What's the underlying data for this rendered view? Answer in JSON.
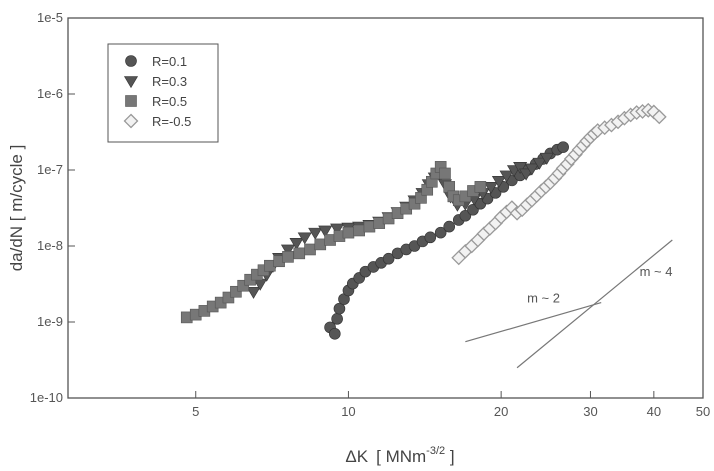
{
  "chart_data": {
    "type": "scatter",
    "xlabel": "ΔK",
    "xlabel_unit_prefix": "MNm",
    "xlabel_unit_exp": "-3/2",
    "ylabel": "da/dN  [ m/cycle ]",
    "x_scale": "log",
    "y_scale": "log",
    "xlim": [
      2.8,
      50
    ],
    "ylim": [
      1e-10,
      1e-05
    ],
    "x_ticks": [
      5,
      10,
      20,
      30,
      40,
      50
    ],
    "x_tick_labels": [
      "5",
      "10",
      "20",
      "30",
      "40",
      "50"
    ],
    "y_ticks": [
      1e-10,
      1e-09,
      1e-08,
      1e-07,
      1e-06,
      1e-05
    ],
    "y_tick_labels": [
      "1e-10",
      "1e-9",
      "1e-8",
      "1e-7",
      "1e-6",
      "1e-5"
    ],
    "grid": false,
    "legend_position": "top-left",
    "series": [
      {
        "name": "R=0.1",
        "marker": "circle",
        "color": "#555555",
        "points": [
          [
            9.2,
            8.5e-10
          ],
          [
            9.4,
            7e-10
          ],
          [
            9.5,
            1.1e-09
          ],
          [
            9.6,
            1.5e-09
          ],
          [
            9.8,
            2e-09
          ],
          [
            10.0,
            2.6e-09
          ],
          [
            10.2,
            3.2e-09
          ],
          [
            10.5,
            3.8e-09
          ],
          [
            10.8,
            4.6e-09
          ],
          [
            11.2,
            5.3e-09
          ],
          [
            11.6,
            6e-09
          ],
          [
            12.0,
            6.8e-09
          ],
          [
            12.5,
            8e-09
          ],
          [
            13.0,
            9e-09
          ],
          [
            13.5,
            1e-08
          ],
          [
            14.0,
            1.15e-08
          ],
          [
            14.5,
            1.3e-08
          ],
          [
            15.2,
            1.5e-08
          ],
          [
            15.8,
            1.8e-08
          ],
          [
            16.5,
            2.2e-08
          ],
          [
            17.0,
            2.5e-08
          ],
          [
            17.6,
            3e-08
          ],
          [
            18.2,
            3.6e-08
          ],
          [
            18.8,
            4.2e-08
          ],
          [
            19.5,
            5e-08
          ],
          [
            20.2,
            6e-08
          ],
          [
            21.0,
            7.3e-08
          ],
          [
            21.8,
            8.5e-08
          ],
          [
            22.6,
            1e-07
          ],
          [
            23.4,
            1.2e-07
          ],
          [
            24.2,
            1.4e-07
          ],
          [
            25.0,
            1.65e-07
          ],
          [
            25.8,
            1.85e-07
          ],
          [
            26.5,
            2e-07
          ]
        ]
      },
      {
        "name": "R=0.3",
        "marker": "triangle-down",
        "color": "#555555",
        "points": [
          [
            6.5,
            2.5e-09
          ],
          [
            6.7,
            3.2e-09
          ],
          [
            6.9,
            4.2e-09
          ],
          [
            7.1,
            5.5e-09
          ],
          [
            7.3,
            7e-09
          ],
          [
            7.6,
            9e-09
          ],
          [
            7.9,
            1.1e-08
          ],
          [
            8.2,
            1.3e-08
          ],
          [
            8.6,
            1.5e-08
          ],
          [
            9.0,
            1.6e-08
          ],
          [
            9.5,
            1.7e-08
          ],
          [
            10.0,
            1.75e-08
          ],
          [
            10.5,
            1.8e-08
          ],
          [
            11.0,
            1.9e-08
          ],
          [
            11.5,
            2.1e-08
          ],
          [
            12.0,
            2.4e-08
          ],
          [
            12.5,
            2.8e-08
          ],
          [
            13.0,
            3.3e-08
          ],
          [
            13.5,
            4e-08
          ],
          [
            14.0,
            5e-08
          ],
          [
            14.4,
            6.5e-08
          ],
          [
            14.8,
            8e-08
          ],
          [
            15.1,
            9e-08
          ],
          [
            15.5,
            6.5e-08
          ],
          [
            15.9,
            4.5e-08
          ],
          [
            16.4,
            3.5e-08
          ],
          [
            17.0,
            3.6e-08
          ],
          [
            17.7,
            4.2e-08
          ],
          [
            18.4,
            5e-08
          ],
          [
            19.1,
            6e-08
          ],
          [
            19.8,
            7.2e-08
          ],
          [
            20.5,
            8.5e-08
          ],
          [
            21.2,
            1e-07
          ],
          [
            21.8,
            1.1e-07
          ],
          [
            22.4,
            9e-08
          ],
          [
            23.0,
            1.05e-07
          ],
          [
            23.8,
            1.25e-07
          ],
          [
            24.6,
            1.45e-07
          ]
        ]
      },
      {
        "name": "R=0.5",
        "marker": "square",
        "color": "#777777",
        "points": [
          [
            4.8,
            1.15e-09
          ],
          [
            5.0,
            1.25e-09
          ],
          [
            5.2,
            1.4e-09
          ],
          [
            5.4,
            1.6e-09
          ],
          [
            5.6,
            1.8e-09
          ],
          [
            5.8,
            2.1e-09
          ],
          [
            6.0,
            2.5e-09
          ],
          [
            6.2,
            3e-09
          ],
          [
            6.4,
            3.6e-09
          ],
          [
            6.6,
            4.2e-09
          ],
          [
            6.8,
            4.8e-09
          ],
          [
            7.0,
            5.5e-09
          ],
          [
            7.3,
            6.3e-09
          ],
          [
            7.6,
            7.2e-09
          ],
          [
            8.0,
            8e-09
          ],
          [
            8.4,
            9e-09
          ],
          [
            8.8,
            1.05e-08
          ],
          [
            9.2,
            1.2e-08
          ],
          [
            9.6,
            1.35e-08
          ],
          [
            10.0,
            1.5e-08
          ],
          [
            10.5,
            1.6e-08
          ],
          [
            11.0,
            1.8e-08
          ],
          [
            11.5,
            2e-08
          ],
          [
            12.0,
            2.3e-08
          ],
          [
            12.5,
            2.7e-08
          ],
          [
            13.0,
            3.1e-08
          ],
          [
            13.5,
            3.6e-08
          ],
          [
            13.9,
            4.3e-08
          ],
          [
            14.3,
            5.5e-08
          ],
          [
            14.6,
            7e-08
          ],
          [
            14.9,
            9e-08
          ],
          [
            15.2,
            1.1e-07
          ],
          [
            15.5,
            9e-08
          ],
          [
            15.8,
            6e-08
          ],
          [
            16.1,
            4.5e-08
          ],
          [
            16.5,
            4e-08
          ],
          [
            17.0,
            4.5e-08
          ],
          [
            17.6,
            5.3e-08
          ],
          [
            18.2,
            6e-08
          ]
        ]
      },
      {
        "name": "R=-0.5",
        "marker": "diamond",
        "color": "#999999",
        "points": [
          [
            16.5,
            7e-09
          ],
          [
            17.0,
            8.5e-09
          ],
          [
            17.5,
            1e-08
          ],
          [
            18.0,
            1.2e-08
          ],
          [
            18.5,
            1.45e-08
          ],
          [
            19.0,
            1.7e-08
          ],
          [
            19.5,
            2e-08
          ],
          [
            20.0,
            2.4e-08
          ],
          [
            20.5,
            2.8e-08
          ],
          [
            21.0,
            3.2e-08
          ],
          [
            21.5,
            2.7e-08
          ],
          [
            22.0,
            3e-08
          ],
          [
            22.5,
            3.5e-08
          ],
          [
            23.0,
            4e-08
          ],
          [
            23.5,
            4.6e-08
          ],
          [
            24.0,
            5.3e-08
          ],
          [
            24.5,
            6e-08
          ],
          [
            25.0,
            6.8e-08
          ],
          [
            25.5,
            7.8e-08
          ],
          [
            26.0,
            9e-08
          ],
          [
            26.5,
            1.05e-07
          ],
          [
            27.0,
            1.2e-07
          ],
          [
            27.5,
            1.4e-07
          ],
          [
            28.0,
            1.6e-07
          ],
          [
            28.5,
            1.85e-07
          ],
          [
            29.0,
            2.1e-07
          ],
          [
            29.5,
            2.4e-07
          ],
          [
            30.0,
            2.7e-07
          ],
          [
            30.5,
            3e-07
          ],
          [
            31.0,
            3.3e-07
          ],
          [
            32.0,
            3.6e-07
          ],
          [
            33.0,
            3.9e-07
          ],
          [
            34.0,
            4.3e-07
          ],
          [
            35.0,
            4.8e-07
          ],
          [
            36.0,
            5.3e-07
          ],
          [
            37.0,
            5.7e-07
          ],
          [
            38.0,
            5.9e-07
          ],
          [
            39.0,
            6.1e-07
          ],
          [
            40.0,
            5.8e-07
          ],
          [
            41.0,
            5e-07
          ]
        ]
      }
    ],
    "annotations": [
      {
        "text": "m ~ 2",
        "line": [
          [
            17.0,
            5.5e-10
          ],
          [
            31.5,
            1.8e-09
          ]
        ],
        "label_at": [
          22.5,
          1.8e-09
        ]
      },
      {
        "text": "m ~ 4",
        "line": [
          [
            21.5,
            2.5e-10
          ],
          [
            43.5,
            1.2e-08
          ]
        ],
        "label_at": [
          37.5,
          4e-09
        ]
      }
    ]
  }
}
